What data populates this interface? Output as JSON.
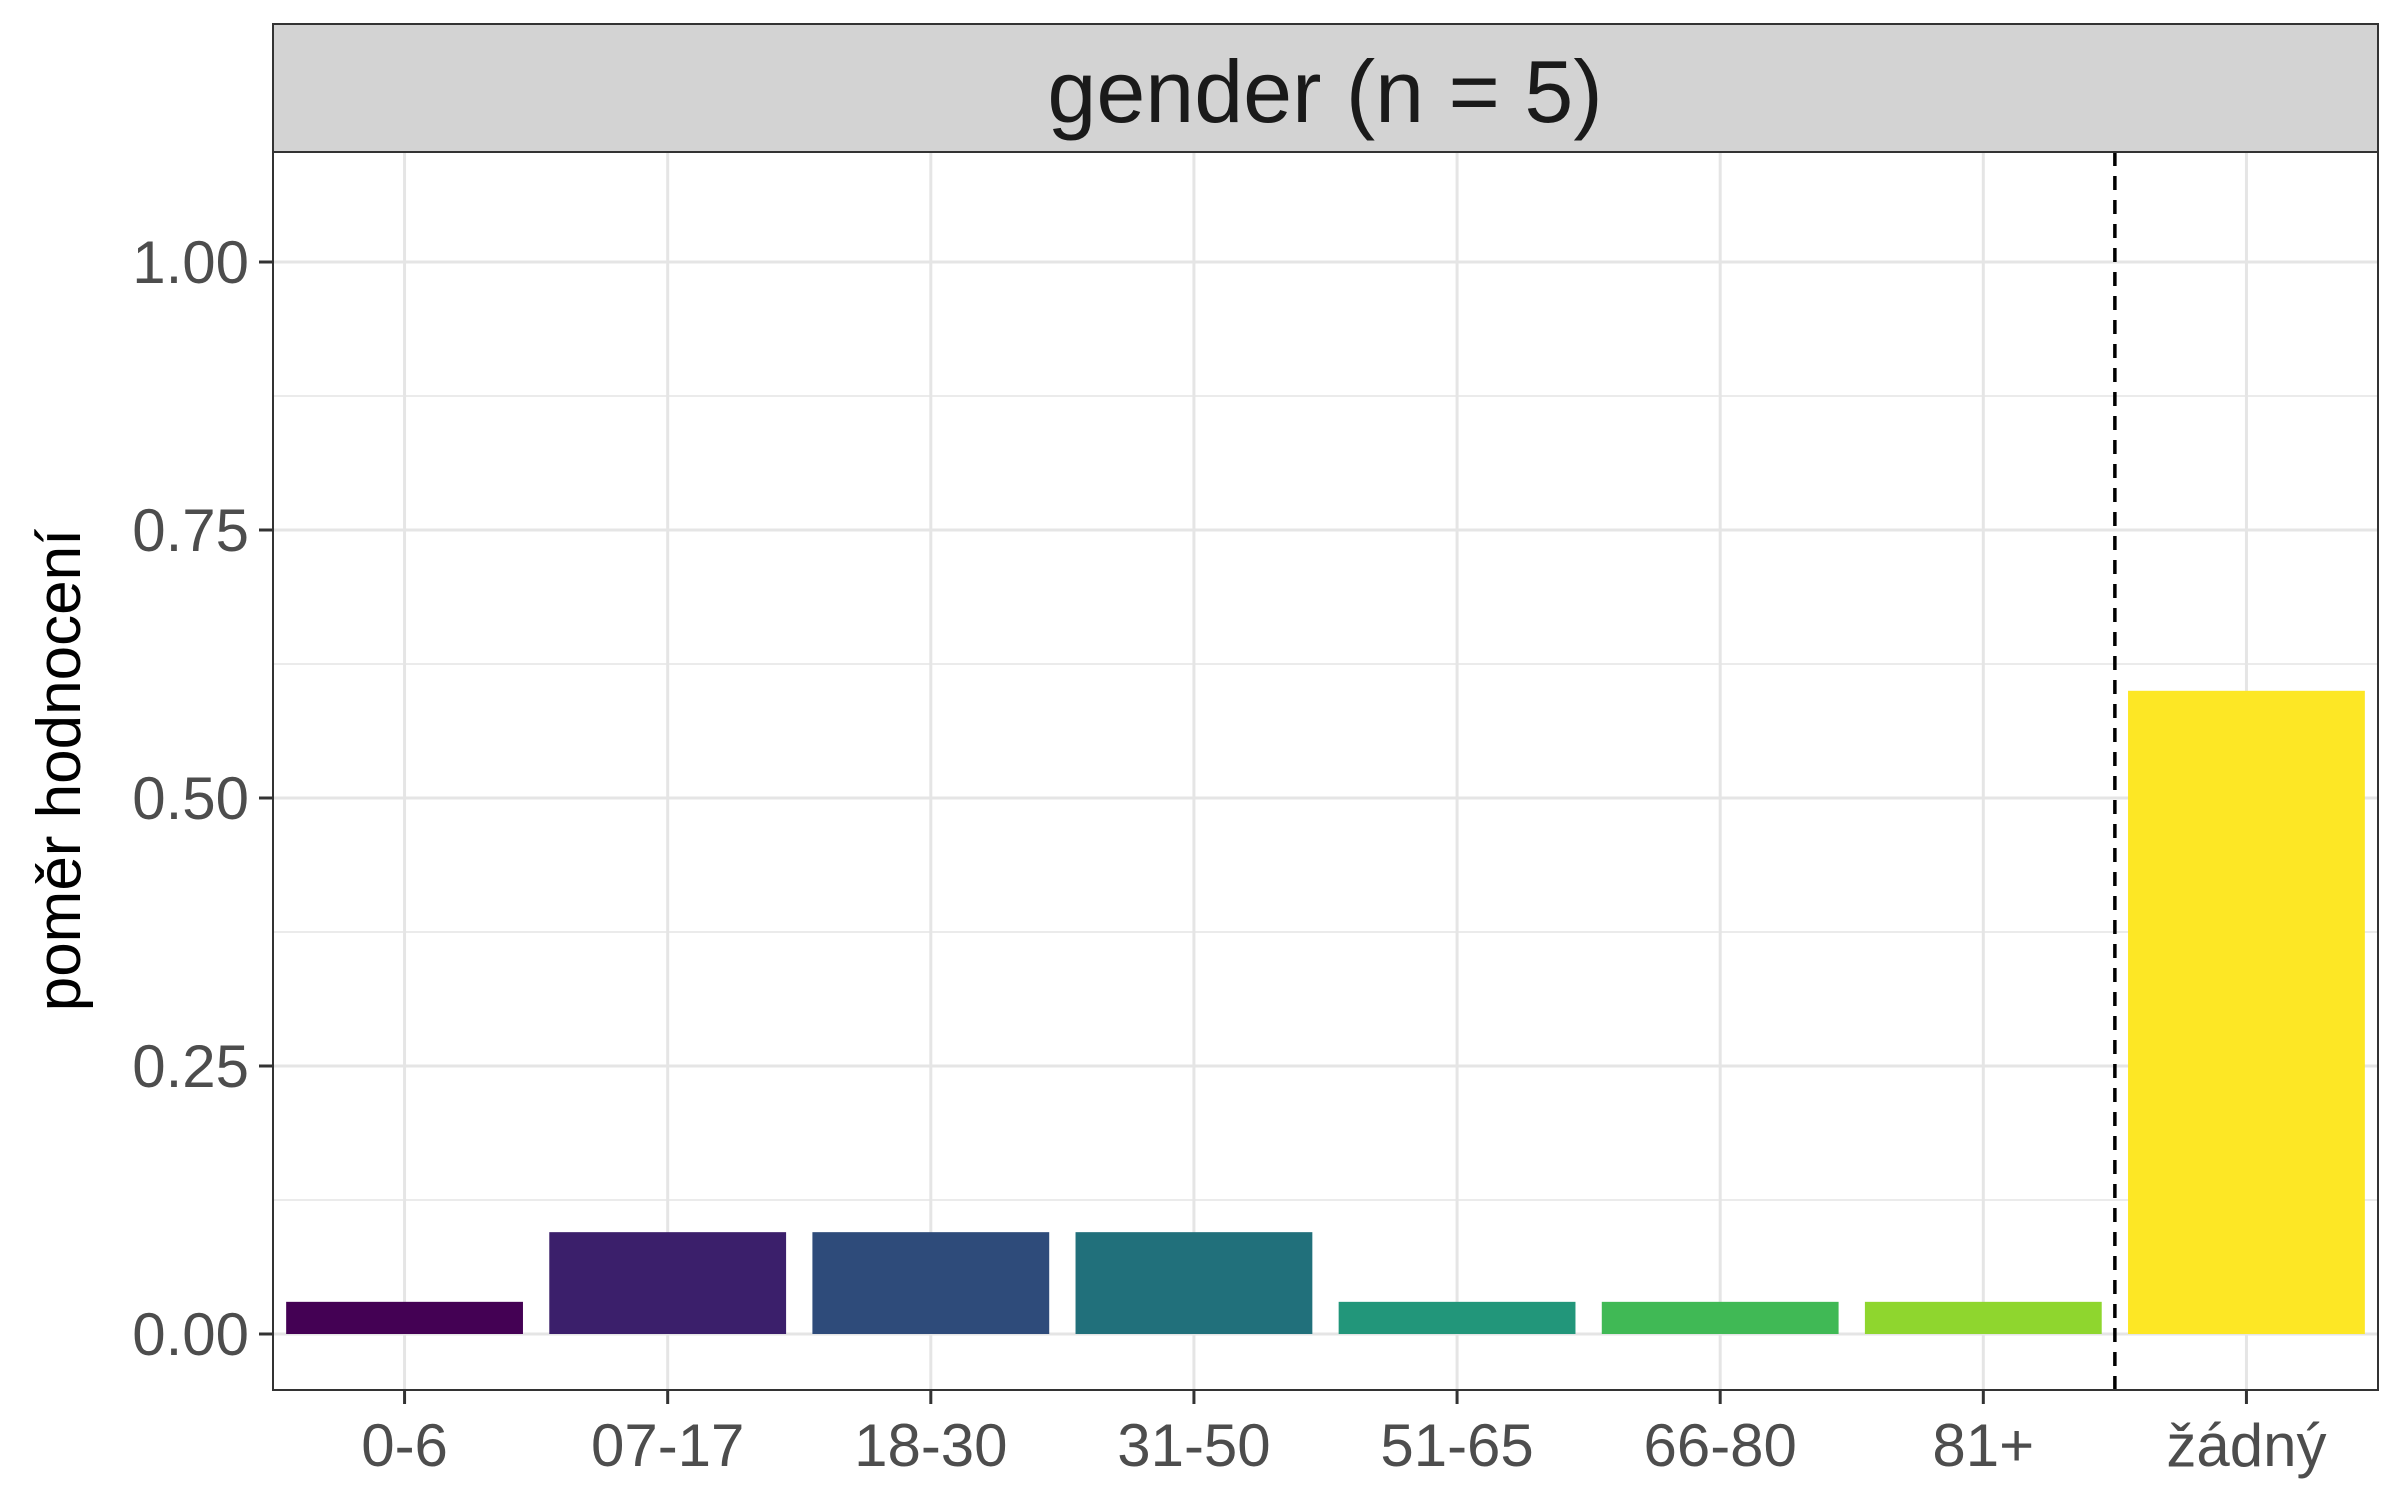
{
  "chart_data": {
    "type": "bar",
    "title": "gender (n = 5)",
    "xlabel": "",
    "ylabel": "poměr hodnocení",
    "categories": [
      "0-6",
      "07-17",
      "18-30",
      "31-50",
      "51-65",
      "66-80",
      "81+",
      "žádný"
    ],
    "values": [
      0.03,
      0.095,
      0.095,
      0.095,
      0.03,
      0.03,
      0.03,
      0.6
    ],
    "colors": [
      "#440154",
      "#3b1f6b",
      "#2e4b7a",
      "#21707b",
      "#22967a",
      "#40b955",
      "#8fd62e",
      "#fde725"
    ],
    "ylim": [
      -0.05,
      1.1
    ],
    "yticks": [
      "0.00",
      "0.25",
      "0.50",
      "0.75",
      "1.00"
    ],
    "ytick_values": [
      0,
      0.25,
      0.5,
      0.75,
      1.0
    ],
    "grid": true,
    "legend": "none",
    "reference_line": {
      "between_categories": [
        "81+",
        "žádný"
      ],
      "style": "dashed",
      "color": "#000000"
    },
    "strip_fill": "#d3d3d3"
  }
}
